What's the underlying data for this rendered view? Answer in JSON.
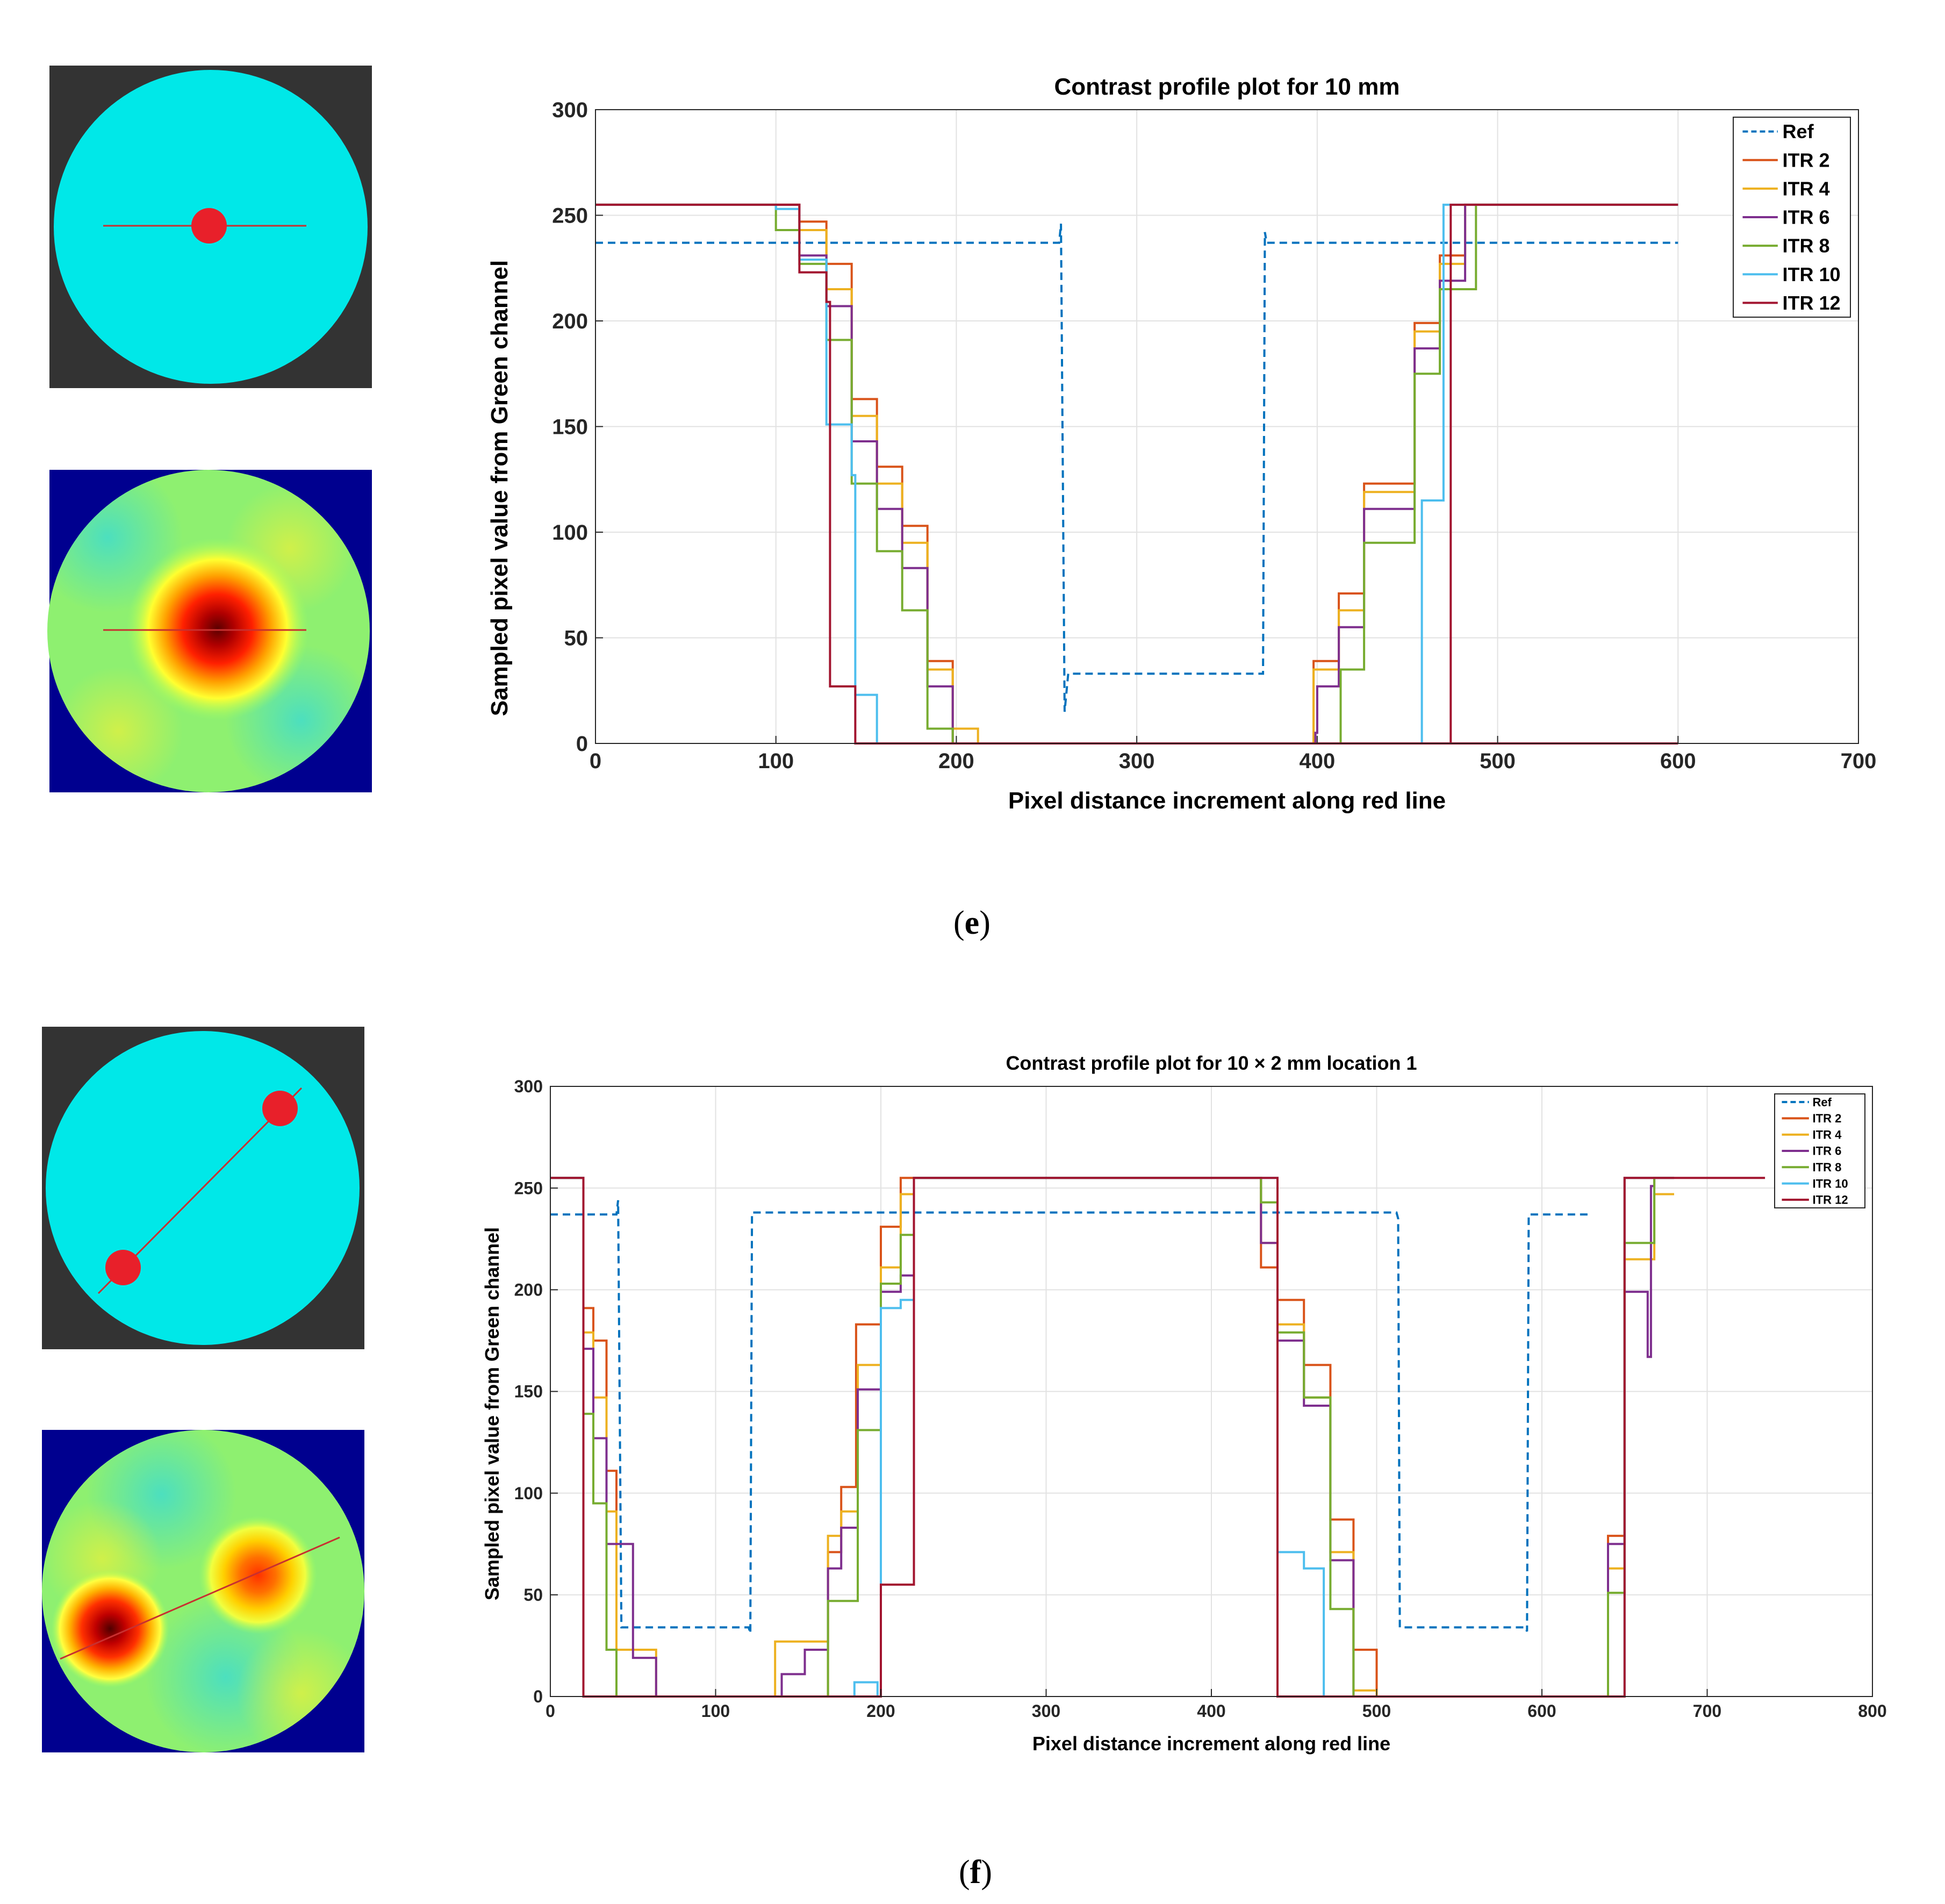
{
  "panels": [
    {
      "label": "e",
      "chart_data": {
        "type": "line",
        "title": "Contrast profile plot for 10 mm",
        "xlabel": "Pixel distance increment along red line",
        "ylabel": "Sampled pixel value from Green channel",
        "xlim": [
          0,
          700
        ],
        "ylim": [
          0,
          300
        ],
        "xticks": [
          0,
          100,
          200,
          300,
          400,
          500,
          600,
          700
        ],
        "yticks": [
          0,
          50,
          100,
          150,
          200,
          250,
          300
        ],
        "grid": true,
        "legend": "top-right",
        "series": [
          {
            "name": "Ref",
            "style": "dashed",
            "color": "#0072BD",
            "x": [
              0,
              257,
              258,
              260,
              262,
              370,
              371,
              372,
              376,
              600
            ],
            "y": [
              237,
              237,
              246,
              15,
              33,
              33,
              242,
              237,
              237,
              237
            ]
          },
          {
            "name": "ITR 2",
            "style": "solid",
            "color": "#D95319",
            "x": [
              0,
              113,
              113,
              128,
              128,
              142,
              142,
              156,
              156,
              170,
              170,
              184,
              184,
              198,
              198,
              211,
              211,
              600
            ],
            "y": [
              255,
              255,
              247,
              247,
              227,
              227,
              163,
              163,
              131,
              131,
              103,
              103,
              39,
              39,
              0,
              0,
              0,
              0
            ],
            "x2": [
              398,
              398,
              412,
              412,
              426,
              426,
              454,
              454,
              468,
              468,
              482,
              482,
              600
            ],
            "y2": [
              0,
              39,
              39,
              71,
              71,
              123,
              123,
              199,
              199,
              231,
              231,
              255,
              255
            ]
          },
          {
            "name": "ITR 4",
            "style": "solid",
            "color": "#EDB120",
            "x": [
              0,
              113,
              113,
              128,
              128,
              142,
              142,
              156,
              156,
              170,
              170,
              184,
              184,
              198,
              198,
              212,
              212,
              219,
              219,
              600
            ],
            "y": [
              255,
              255,
              243,
              243,
              215,
              215,
              155,
              155,
              123,
              123,
              95,
              95,
              35,
              35,
              7,
              7,
              0,
              0,
              0,
              0
            ],
            "x2": [
              398,
              398,
              412,
              412,
              426,
              426,
              454,
              454,
              468,
              468,
              482,
              482,
              600
            ],
            "y2": [
              0,
              35,
              35,
              63,
              63,
              119,
              119,
              195,
              195,
              227,
              227,
              255,
              255
            ]
          },
          {
            "name": "ITR 6",
            "style": "solid",
            "color": "#7E2F8E",
            "x": [
              0,
              113,
              113,
              128,
              128,
              142,
              142,
              156,
              156,
              170,
              170,
              184,
              184,
              198,
              198,
              600
            ],
            "y": [
              255,
              255,
              231,
              231,
              207,
              207,
              143,
              143,
              111,
              111,
              83,
              83,
              27,
              27,
              0,
              0
            ],
            "x2": [
              399,
              399,
              400,
              400,
              412,
              412,
              426,
              426,
              454,
              454,
              468,
              468,
              482,
              482,
              600
            ],
            "y2": [
              0,
              5,
              5,
              27,
              27,
              55,
              55,
              111,
              111,
              187,
              187,
              219,
              219,
              255,
              255
            ]
          },
          {
            "name": "ITR 8",
            "style": "solid",
            "color": "#77AC30",
            "x": [
              0,
              100,
              100,
              113,
              113,
              128,
              128,
              142,
              142,
              156,
              156,
              170,
              170,
              184,
              184,
              198,
              198,
              210,
              210,
              600
            ],
            "y": [
              255,
              255,
              243,
              243,
              227,
              227,
              191,
              191,
              123,
              123,
              91,
              91,
              63,
              63,
              7,
              7,
              0,
              0,
              0,
              0
            ],
            "x2": [
              413,
              413,
              426,
              426,
              454,
              454,
              468,
              468,
              488,
              488,
              600
            ],
            "y2": [
              0,
              35,
              35,
              95,
              95,
              175,
              175,
              215,
              215,
              255,
              255
            ]
          },
          {
            "name": "ITR 10",
            "style": "solid",
            "color": "#4DBEEE",
            "x": [
              0,
              100,
              100,
              113,
              113,
              128,
              128,
              142,
              142,
              144,
              144,
              156,
              156,
              160,
              160,
              600
            ],
            "y": [
              255,
              255,
              253,
              253,
              229,
              229,
              151,
              151,
              127,
              127,
              23,
              23,
              0,
              0,
              0,
              0
            ],
            "x2": [
              458,
              458,
              470,
              470,
              474,
              474,
              600
            ],
            "y2": [
              0,
              115,
              115,
              255,
              255,
              255,
              255
            ]
          },
          {
            "name": "ITR 12",
            "style": "solid",
            "color": "#A2142F",
            "x": [
              0,
              113,
              113,
              128,
              128,
              130,
              130,
              144,
              144,
              600
            ],
            "y": [
              255,
              255,
              223,
              223,
              209,
              209,
              27,
              27,
              0,
              0
            ],
            "x2": [
              474,
              474,
              600
            ],
            "y2": [
              0,
              255,
              255
            ]
          }
        ]
      }
    },
    {
      "label": "f",
      "chart_data": {
        "type": "line",
        "title": "Contrast profile plot for 10 × 2 mm location 1",
        "xlabel": "Pixel distance increment along red line",
        "ylabel": "Sampled pixel value from Green channel",
        "xlim": [
          0,
          800
        ],
        "ylim": [
          0,
          300
        ],
        "xticks": [
          0,
          100,
          200,
          300,
          400,
          500,
          600,
          700,
          800
        ],
        "yticks": [
          0,
          50,
          100,
          150,
          200,
          250,
          300
        ],
        "grid": true,
        "legend": "top-right",
        "series": [
          {
            "name": "Ref",
            "style": "dashed",
            "color": "#0072BD",
            "x": [
              0,
              40,
              41,
              43,
              120,
              121,
              122,
              512,
              513,
              514,
              590,
              591,
              592,
              628
            ],
            "y": [
              237,
              237,
              244,
              34,
              34,
              31,
              238,
              238,
              235,
              34,
              34,
              32,
              237,
              237
            ]
          },
          {
            "name": "ITR 2",
            "style": "solid",
            "color": "#D95319",
            "x": [
              0,
              20,
              20,
              26,
              26,
              34,
              34,
              40,
              40,
              50,
              50,
              140,
              140,
              168,
              168,
              176,
              176,
              185,
              185,
              200,
              200,
              212,
              212,
              220,
              220,
              430,
              430,
              440,
              440,
              456,
              456,
              472,
              472,
              486,
              486,
              500,
              500,
              640,
              640,
              650,
              650,
              660,
              660,
              680
            ],
            "y": [
              255,
              255,
              191,
              191,
              175,
              175,
              111,
              111,
              0,
              0,
              0,
              0,
              0,
              0,
              71,
              71,
              103,
              103,
              183,
              183,
              231,
              231,
              255,
              255,
              255,
              255,
              211,
              211,
              195,
              195,
              163,
              163,
              87,
              87,
              23,
              23,
              0,
              0,
              79,
              79,
              255,
              255,
              255,
              255
            ]
          },
          {
            "name": "ITR 4",
            "style": "solid",
            "color": "#EDB120",
            "x": [
              0,
              20,
              20,
              26,
              26,
              34,
              34,
              40,
              40,
              50,
              50,
              64,
              64,
              136,
              136,
              154,
              154,
              168,
              168,
              176,
              176,
              186,
              186,
              200,
              200,
              212,
              212,
              220,
              220,
              430,
              430,
              440,
              440,
              456,
              456,
              472,
              472,
              486,
              486,
              500,
              500,
              640,
              640,
              650,
              650,
              668,
              668,
              680
            ],
            "y": [
              255,
              255,
              179,
              179,
              147,
              147,
              91,
              91,
              23,
              23,
              23,
              23,
              0,
              0,
              27,
              27,
              27,
              27,
              79,
              79,
              91,
              91,
              163,
              163,
              211,
              211,
              247,
              247,
              255,
              255,
              223,
              223,
              183,
              183,
              147,
              147,
              71,
              71,
              3,
              3,
              0,
              0,
              63,
              63,
              215,
              215,
              247,
              247
            ]
          },
          {
            "name": "ITR 6",
            "style": "solid",
            "color": "#7E2F8E",
            "x": [
              0,
              20,
              20,
              26,
              26,
              34,
              34,
              50,
              50,
              64,
              64,
              140,
              140,
              154,
              154,
              168,
              168,
              176,
              176,
              186,
              186,
              200,
              200,
              212,
              212,
              220,
              220,
              430,
              430,
              440,
              440,
              456,
              456,
              472,
              472,
              486,
              486,
              640,
              640,
              650,
              650,
              664,
              664,
              666,
              666,
              668,
              668,
              680
            ],
            "y": [
              255,
              255,
              171,
              171,
              127,
              127,
              75,
              75,
              19,
              19,
              0,
              0,
              11,
              11,
              23,
              23,
              63,
              63,
              83,
              83,
              151,
              151,
              199,
              199,
              207,
              207,
              255,
              255,
              223,
              223,
              175,
              175,
              143,
              143,
              67,
              67,
              0,
              0,
              75,
              75,
              199,
              199,
              167,
              167,
              251,
              251,
              255,
              255
            ]
          },
          {
            "name": "ITR 8",
            "style": "solid",
            "color": "#77AC30",
            "x": [
              0,
              20,
              20,
              26,
              26,
              34,
              34,
              40,
              40,
              50,
              50,
              168,
              168,
              176,
              176,
              186,
              186,
              200,
              200,
              212,
              212,
              220,
              220,
              430,
              430,
              440,
              440,
              456,
              456,
              472,
              472,
              486,
              486,
              640,
              640,
              650,
              650,
              668,
              668,
              680
            ],
            "y": [
              255,
              255,
              139,
              139,
              95,
              95,
              23,
              23,
              0,
              0,
              0,
              0,
              47,
              47,
              47,
              47,
              131,
              131,
              203,
              203,
              227,
              227,
              255,
              255,
              243,
              243,
              179,
              179,
              147,
              147,
              43,
              43,
              0,
              0,
              51,
              51,
              223,
              223,
              255,
              255
            ]
          },
          {
            "name": "ITR 10",
            "style": "solid",
            "color": "#4DBEEE",
            "x": [
              0,
              20,
              20,
              50,
              50,
              184,
              184,
              198,
              198,
              200,
              200,
              212,
              212,
              220,
              220,
              430,
              430,
              440,
              440,
              456,
              456,
              468,
              468,
              640,
              640,
              650,
              650,
              680
            ],
            "y": [
              255,
              255,
              0,
              0,
              0,
              0,
              7,
              7,
              0,
              0,
              191,
              191,
              195,
              195,
              255,
              255,
              255,
              255,
              71,
              71,
              63,
              63,
              0,
              0,
              0,
              0,
              255,
              255
            ]
          },
          {
            "name": "ITR 12",
            "style": "solid",
            "color": "#A2142F",
            "x": [
              0,
              20,
              20,
              200,
              200,
              220,
              220,
              440,
              440,
              650,
              650,
              735
            ],
            "y": [
              255,
              255,
              0,
              0,
              55,
              55,
              255,
              255,
              0,
              0,
              255,
              255
            ]
          }
        ]
      }
    }
  ],
  "colors": {
    "phantom_bg": "#333333",
    "phantom_disk": "#00E8E8",
    "inclusion": "#E8202A",
    "recon_bg": "#00008F"
  }
}
